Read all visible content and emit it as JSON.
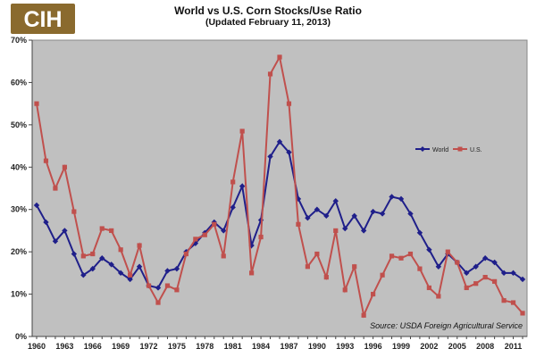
{
  "logo": {
    "text": "CIH",
    "color_bg": "#8a6a2e",
    "color_text": "#ffffff"
  },
  "chart_data": {
    "type": "line",
    "title": "World vs U.S. Corn Stocks/Use Ratio",
    "subtitle": "(Updated February 11, 2013)",
    "x": [
      1960,
      1961,
      1962,
      1963,
      1964,
      1965,
      1966,
      1967,
      1968,
      1969,
      1970,
      1971,
      1972,
      1973,
      1974,
      1975,
      1976,
      1977,
      1978,
      1979,
      1980,
      1981,
      1982,
      1983,
      1984,
      1985,
      1986,
      1987,
      1988,
      1989,
      1990,
      1991,
      1992,
      1993,
      1994,
      1995,
      1996,
      1997,
      1998,
      1999,
      2000,
      2001,
      2002,
      2003,
      2004,
      2005,
      2006,
      2007,
      2008,
      2009,
      2010,
      2011,
      2012
    ],
    "xticks": [
      "1960",
      "1963",
      "1966",
      "1969",
      "1972",
      "1975",
      "1978",
      "1981",
      "1984",
      "1987",
      "1990",
      "1993",
      "1996",
      "1999",
      "2002",
      "2005",
      "2008",
      "2011"
    ],
    "yticks": [
      "0%",
      "10%",
      "20%",
      "30%",
      "40%",
      "50%",
      "60%",
      "70%"
    ],
    "ylim": [
      0,
      70
    ],
    "grid": false,
    "plot_bg": "#c0c0c0",
    "legend_position": "right",
    "series": [
      {
        "name": "World",
        "color": "#1f1f8a",
        "marker": "diamond",
        "values": [
          31,
          27,
          22.5,
          25,
          19.5,
          14.5,
          16,
          18.5,
          17,
          15,
          13.5,
          16.5,
          12,
          11.5,
          15.5,
          16,
          20,
          22,
          24.5,
          27,
          25,
          30.5,
          35.5,
          21.5,
          27.5,
          42.5,
          46,
          43.5,
          32.5,
          28,
          30,
          28.5,
          32,
          25.5,
          28.5,
          25,
          29.5,
          29,
          33,
          32.5,
          29,
          24.5,
          20.5,
          16.5,
          19.5,
          17.5,
          15,
          16.5,
          18.5,
          17.5,
          15,
          15,
          13.5
        ]
      },
      {
        "name": "U.S.",
        "color": "#c0504d",
        "marker": "square",
        "values": [
          55,
          41.5,
          35,
          40,
          29.5,
          19,
          19.5,
          25.5,
          25,
          20.5,
          14.5,
          21.5,
          12,
          8,
          12,
          11,
          19.5,
          23,
          24,
          26.5,
          19,
          36.5,
          48.5,
          15,
          23.5,
          62,
          66,
          55,
          26.5,
          16.5,
          19.5,
          14,
          25,
          11,
          16.5,
          5,
          10,
          14.5,
          19,
          18.5,
          19.5,
          16,
          11.5,
          9.5,
          20,
          17.5,
          11.5,
          12.5,
          14,
          13,
          8.5,
          8,
          5.5
        ]
      }
    ],
    "annotation": "Source: USDA Foreign Agricultural Service"
  }
}
